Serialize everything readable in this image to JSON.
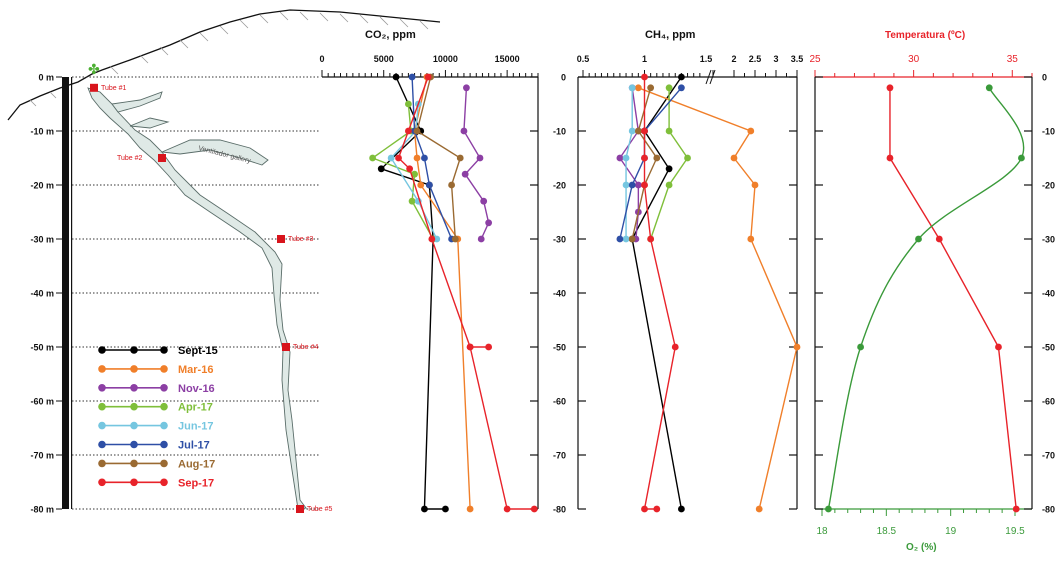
{
  "cave_panel": {
    "depth_labels": [
      "0 m",
      "-10 m",
      "-20 m",
      "-30 m",
      "-40 m",
      "-50 m",
      "-60 m",
      "-70 m",
      "-80 m"
    ],
    "depths": [
      0,
      -10,
      -20,
      -30,
      -40,
      -50,
      -60,
      -70,
      -80
    ],
    "tubes": [
      {
        "label": "Tube #1",
        "depth": -2
      },
      {
        "label": "Tube #2",
        "depth": -15
      },
      {
        "label": "Tube #3",
        "depth": -30
      },
      {
        "label": "Tube #4",
        "depth": -50
      },
      {
        "label": "Tube #5",
        "depth": -80
      }
    ],
    "gallery_label": "Ventilador gallery"
  },
  "legend": [
    {
      "name": "Sept-15",
      "color": "#000000"
    },
    {
      "name": "Mar-16",
      "color": "#f07f2a"
    },
    {
      "name": "Nov-16",
      "color": "#8c3fa4"
    },
    {
      "name": "Apr-17",
      "color": "#7fbf3a"
    },
    {
      "name": "Jun-17",
      "color": "#75c6e0"
    },
    {
      "name": "Jul-17",
      "color": "#2e4fa6"
    },
    {
      "name": "Aug-17",
      "color": "#9a6a32"
    },
    {
      "name": "Sep-17",
      "color": "#e8232a"
    }
  ],
  "chart_data": [
    {
      "type": "line",
      "title": "CO₂, ppm",
      "xlabel": "CO₂, ppm",
      "ylabel": "depth",
      "xlim": [
        0,
        17500
      ],
      "ylim": [
        -80,
        0
      ],
      "x_ticks": [
        "0",
        "5000",
        "10000",
        "15000"
      ],
      "y_ticks": [
        "0",
        "-10",
        "-20",
        "-30",
        "-40",
        "-50",
        "-60",
        "-70",
        "-80"
      ],
      "series": [
        {
          "name": "Sept-15",
          "x": [
            6000,
            8000,
            4800,
            8700,
            9000,
            8300,
            10000
          ],
          "y": [
            0,
            -10,
            -17,
            -20,
            -30,
            -80,
            -80
          ]
        },
        {
          "name": "Mar-16",
          "x": [
            8500,
            7500,
            7700,
            8000,
            11000,
            12000
          ],
          "y": [
            0,
            -10,
            -15,
            -20,
            -30,
            -80
          ]
        },
        {
          "name": "Nov-16",
          "x": [
            11700,
            11500,
            12800,
            11600,
            13100,
            13500,
            12900
          ],
          "y": [
            -2,
            -10,
            -15,
            -18,
            -23,
            -27,
            -30
          ]
        },
        {
          "name": "Apr-17",
          "x": [
            7000,
            7200,
            4100,
            7500,
            7300,
            9000
          ],
          "y": [
            -5,
            -10,
            -15,
            -18,
            -23,
            -30
          ]
        },
        {
          "name": "Jun-17",
          "x": [
            7800,
            7600,
            5600,
            7800,
            9300
          ],
          "y": [
            -5,
            -10,
            -15,
            -23,
            -30
          ]
        },
        {
          "name": "Jul-17",
          "x": [
            7300,
            7500,
            8300,
            8700,
            10500
          ],
          "y": [
            0,
            -10,
            -15,
            -20,
            -30
          ]
        },
        {
          "name": "Aug-17",
          "x": [
            8800,
            7700,
            11200,
            10500,
            10800
          ],
          "y": [
            0,
            -10,
            -15,
            -20,
            -30
          ]
        },
        {
          "name": "Sep-17",
          "x": [
            8600,
            7000,
            6200,
            7100,
            8900,
            12000,
            13500,
            12000,
            15000,
            17200
          ],
          "y": [
            0,
            -10,
            -15,
            -17,
            -30,
            -50,
            -50,
            -50,
            -80,
            -80
          ]
        }
      ]
    },
    {
      "type": "line",
      "title": "CH₄, ppm",
      "xlabel": "CH₄, ppm",
      "ylabel": "depth",
      "x_scale": "broken",
      "xlim": [
        0.5,
        3.5
      ],
      "ylim": [
        -80,
        0
      ],
      "x_ticks": [
        "0.5",
        "1",
        "1.5",
        "2",
        "2.5",
        "3",
        "3.5"
      ],
      "y_ticks": [
        "0",
        "-10",
        "-20",
        "-30",
        "-40",
        "-50",
        "-60",
        "-70",
        "-80"
      ],
      "series": [
        {
          "name": "Sept-15",
          "x": [
            1.3,
            1.0,
            1.2,
            0.9,
            1.3
          ],
          "y": [
            0,
            -10,
            -17,
            -30,
            -80
          ]
        },
        {
          "name": "Mar-16",
          "x": [
            0.95,
            2.4,
            2.0,
            2.5,
            2.4,
            3.5,
            2.6
          ],
          "y": [
            -2,
            -10,
            -15,
            -20,
            -30,
            -50,
            -80
          ]
        },
        {
          "name": "Nov-16",
          "x": [
            0.9,
            0.95,
            0.8,
            0.95,
            0.95,
            0.93
          ],
          "y": [
            -2,
            -10,
            -15,
            -20,
            -25,
            -30
          ]
        },
        {
          "name": "Apr-17",
          "x": [
            1.2,
            1.2,
            1.35,
            1.2,
            1.05
          ],
          "y": [
            -2,
            -10,
            -15,
            -20,
            -30
          ]
        },
        {
          "name": "Jun-17",
          "x": [
            0.9,
            0.9,
            0.85,
            0.85,
            0.85
          ],
          "y": [
            -2,
            -10,
            -15,
            -20,
            -30
          ]
        },
        {
          "name": "Jul-17",
          "x": [
            1.3,
            1.0,
            1.0,
            0.9,
            0.8
          ],
          "y": [
            -2,
            -10,
            -15,
            -20,
            -30
          ]
        },
        {
          "name": "Aug-17",
          "x": [
            1.05,
            0.95,
            1.1,
            1.0,
            0.9
          ],
          "y": [
            -2,
            -10,
            -15,
            -20,
            -30
          ]
        },
        {
          "name": "Sep-17",
          "x": [
            1.0,
            1.0,
            1.0,
            1.0,
            1.05,
            1.25,
            1.0,
            1.1
          ],
          "y": [
            0,
            -10,
            -15,
            -20,
            -30,
            -50,
            -80,
            -80
          ]
        }
      ]
    },
    {
      "type": "line",
      "xlabel_top": "Temperatura (ºC)",
      "xlabel_bottom": "O₂ (%)",
      "xlim_top": [
        25,
        36
      ],
      "xlim_bottom": [
        18,
        19.55
      ],
      "ylim": [
        -80,
        0
      ],
      "x_ticks_top": [
        "25",
        "30",
        "35"
      ],
      "x_ticks_bottom": [
        "18",
        "18.5",
        "19",
        "19.5"
      ],
      "y_ticks": [
        "0",
        "-10",
        "-20",
        "-30",
        "-40",
        "-50",
        "-60",
        "-70",
        "-80"
      ],
      "series": [
        {
          "name": "Temperatura",
          "color": "#e8232a",
          "x": [
            28.8,
            28.8,
            31.3,
            34.3,
            35.2
          ],
          "y": [
            -2,
            -15,
            -30,
            -50,
            -80
          ],
          "axis": "top"
        },
        {
          "name": "O₂",
          "color": "#3a9a3a",
          "x": [
            19.3,
            19.55,
            18.75,
            18.3,
            18.05
          ],
          "y": [
            -2,
            -15,
            -30,
            -50,
            -80
          ],
          "axis": "bottom",
          "smooth": true
        }
      ]
    }
  ]
}
